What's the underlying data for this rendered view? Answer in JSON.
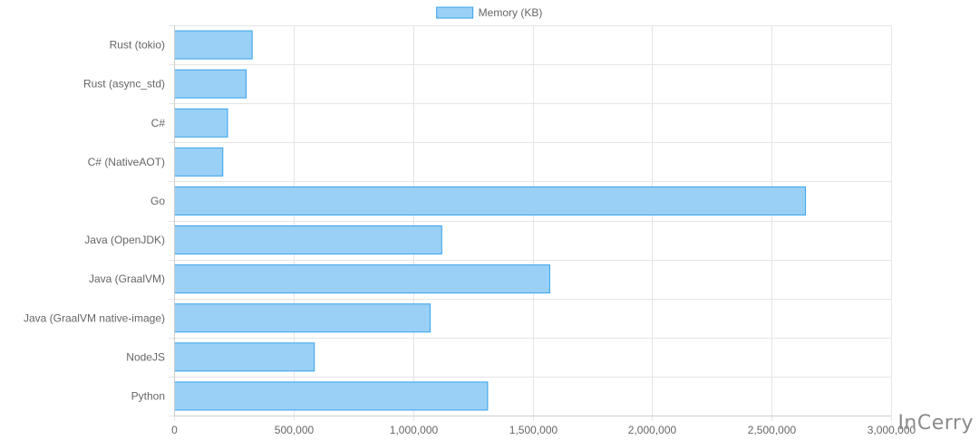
{
  "watermark": "InCerry",
  "colors": {
    "bar_fill": "#9ad0f5",
    "bar_stroke": "#36a2eb",
    "grid": "#e5e5e5",
    "axis": "#cccccc",
    "text": "#666666"
  },
  "chart_data": {
    "type": "bar",
    "orientation": "horizontal",
    "title": "",
    "xlabel": "",
    "ylabel": "",
    "legend_position": "top-center",
    "grid": true,
    "categories": [
      "Rust (tokio)",
      "Rust (async_std)",
      "C#",
      "C# (NativeAOT)",
      "Go",
      "Java (OpenJDK)",
      "Java (GraalVM)",
      "Java (GraalVM native-image)",
      "NodeJS",
      "Python"
    ],
    "series": [
      {
        "name": "Memory (KB)",
        "values": [
          325000,
          300000,
          222000,
          202000,
          2640000,
          1118000,
          1570000,
          1070000,
          585000,
          1310000
        ]
      }
    ],
    "xlim": [
      0,
      3000000
    ],
    "xticks": [
      0,
      500000,
      1000000,
      1500000,
      2000000,
      2500000,
      3000000
    ],
    "xtick_labels": [
      "0",
      "500,000",
      "1,000,000",
      "1,500,000",
      "2,000,000",
      "2,500,000",
      "3,000,000"
    ]
  }
}
